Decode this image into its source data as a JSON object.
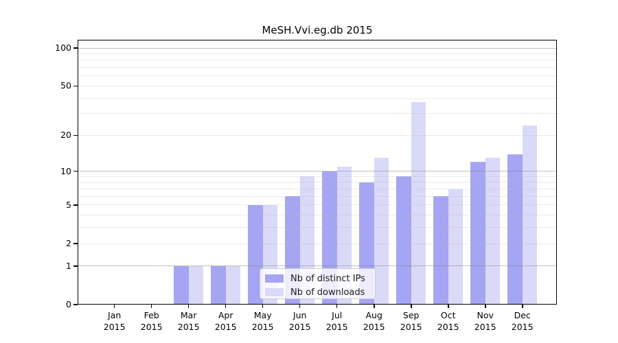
{
  "title": "MeSH.Vvi.eg.db 2015",
  "chart_data": {
    "type": "bar",
    "title": "MeSH.Vvi.eg.db 2015",
    "y_scale": "log10(1+x)",
    "ylim": [
      0,
      100
    ],
    "y_ticks": [
      100,
      50,
      20,
      10,
      5,
      2,
      1,
      0
    ],
    "gridlines": {
      "major": [
        1,
        10,
        100
      ],
      "minor": [
        2,
        3,
        4,
        5,
        6,
        7,
        8,
        9,
        20,
        30,
        40,
        50,
        60,
        70,
        80,
        90
      ]
    },
    "categories": [
      "Jan",
      "Feb",
      "Mar",
      "Apr",
      "May",
      "Jun",
      "Jul",
      "Aug",
      "Sep",
      "Oct",
      "Nov",
      "Dec"
    ],
    "category_year": "2015",
    "series": [
      {
        "name": "Nb of distinct IPs",
        "color": "#a5a5f3",
        "values": [
          0,
          0,
          1,
          1,
          5,
          6,
          10,
          8,
          9,
          6,
          12,
          14
        ]
      },
      {
        "name": "Nb of downloads",
        "color": "#d9d9f8",
        "values": [
          0,
          0,
          1,
          1,
          5,
          9,
          11,
          13,
          37,
          7,
          13,
          24
        ]
      }
    ],
    "legend": {
      "position": "lower center",
      "entries": [
        "Nb of distinct IPs",
        "Nb of downloads"
      ]
    },
    "grid": "horizontal"
  },
  "colors": {
    "background": "#ffffff",
    "axis": "#000000",
    "grid_major": "#848484",
    "grid_minor": "#b8b8b8",
    "bar_distinct_ips": "#a5a5f3",
    "bar_downloads": "#d9d9f8",
    "legend_border": "#cccccc",
    "text": "#000000"
  }
}
